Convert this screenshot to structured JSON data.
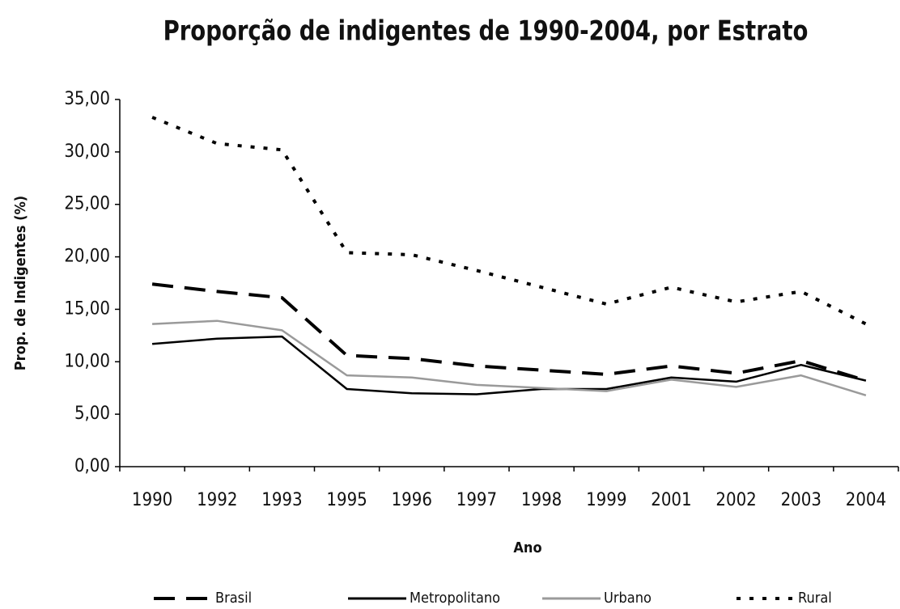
{
  "chart_data": {
    "type": "line",
    "title": "Proporção de indigentes de 1990-2004, por Estrato",
    "x_label": "Ano",
    "y_label": "Prop. de Indigentes (%)",
    "categories": [
      "1990",
      "1992",
      "1993",
      "1995",
      "1996",
      "1997",
      "1998",
      "1999",
      "2001",
      "2002",
      "2003",
      "2004"
    ],
    "series": [
      {
        "name": "Brasil",
        "color": "#000000",
        "dash": "dashed",
        "values": [
          17.4,
          16.7,
          16.1,
          10.6,
          10.3,
          9.6,
          9.2,
          8.8,
          9.6,
          8.9,
          10.1,
          8.2
        ]
      },
      {
        "name": "Metropolitano",
        "color": "#000000",
        "dash": "solid",
        "values": [
          11.7,
          12.2,
          12.4,
          7.4,
          7.0,
          6.9,
          7.4,
          7.4,
          8.5,
          8.1,
          9.7,
          8.2
        ]
      },
      {
        "name": "Urbano",
        "color": "#9a9a9a",
        "dash": "solid",
        "values": [
          13.6,
          13.9,
          13.0,
          8.7,
          8.5,
          7.8,
          7.5,
          7.2,
          8.3,
          7.6,
          8.7,
          6.8
        ]
      },
      {
        "name": "Rural",
        "color": "#000000",
        "dash": "dotted",
        "values": [
          33.3,
          30.8,
          30.2,
          20.4,
          20.2,
          18.7,
          17.1,
          15.5,
          17.1,
          15.7,
          16.7,
          13.6
        ]
      }
    ],
    "ylim": [
      0,
      35
    ],
    "yticks": [
      {
        "value": 0,
        "label": "0,00"
      },
      {
        "value": 5,
        "label": "5,00"
      },
      {
        "value": 10,
        "label": "10,00"
      },
      {
        "value": 15,
        "label": "15,00"
      },
      {
        "value": 20,
        "label": "20,00"
      },
      {
        "value": 25,
        "label": "25,00"
      },
      {
        "value": 30,
        "label": "30,00"
      },
      {
        "value": 35,
        "label": "35,00"
      }
    ],
    "legend": "bottom"
  }
}
